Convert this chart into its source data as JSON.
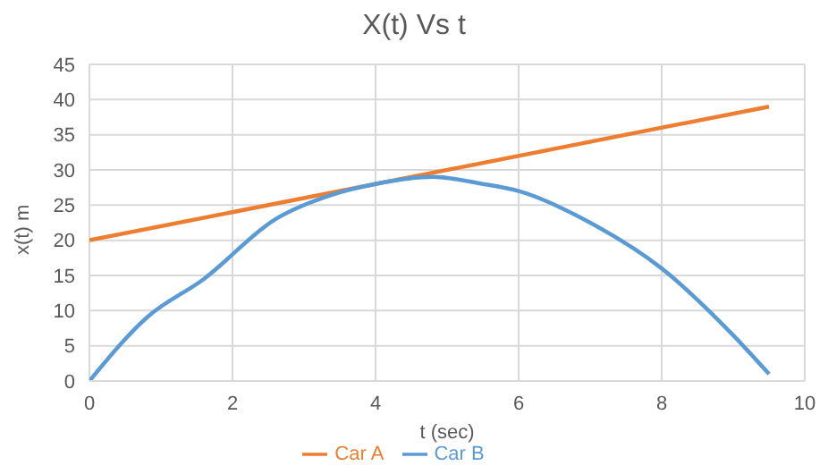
{
  "chart_data": {
    "type": "line",
    "title": "X(t) Vs t",
    "xlabel": "t (sec)",
    "ylabel": "x(t) m",
    "series": [
      {
        "name": "Car A",
        "color": "#ed7d31",
        "x": [
          0,
          9.5
        ],
        "values": [
          20,
          39
        ]
      },
      {
        "name": "Car B",
        "color": "#5b9bd5",
        "x": [
          0,
          0.8,
          1.6,
          2.6,
          3.4,
          4,
          4.8,
          5.5,
          6,
          7,
          8,
          9,
          9.5
        ],
        "values": [
          0,
          9,
          14.5,
          23,
          26.5,
          28,
          29,
          28,
          27,
          22.5,
          16,
          6.5,
          1
        ]
      }
    ],
    "xlim": [
      0,
      10
    ],
    "xticks": [
      0,
      2,
      4,
      6,
      8,
      10
    ],
    "ylim": [
      0,
      45
    ],
    "yticks": [
      0,
      5,
      10,
      15,
      20,
      25,
      30,
      35,
      40,
      45
    ],
    "grid": true,
    "legend": "bottom",
    "marker": "none",
    "line_style": "solid"
  }
}
